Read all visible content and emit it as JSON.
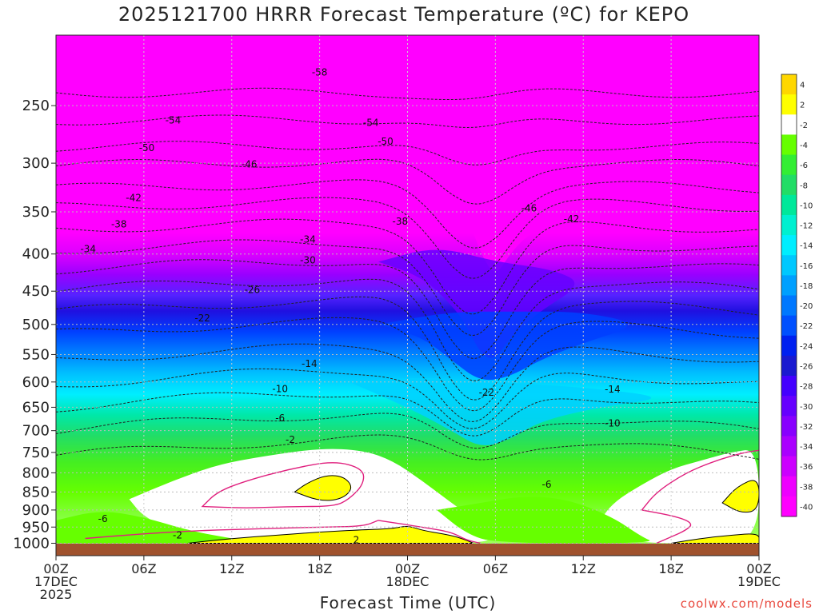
{
  "title": "2025121700 HRRR Forecast Temperature (ºC) for KEPO",
  "xlabel": "Forecast Time (UTC)",
  "credit": "coolwx.com/models",
  "colors": {
    "ground": "#a0522d",
    "grid": "#888888",
    "contour": "#222222",
    "freezing_contour": "#e0207e"
  },
  "chart_data": {
    "type": "heatmap",
    "title": "2025121700 HRRR Forecast Temperature (ºC) for KEPO",
    "xlabel": "Forecast Time (UTC)",
    "ylabel": "",
    "x_ticks": [
      {
        "line1": "00Z",
        "line2": "17DEC",
        "line3": "2025"
      },
      {
        "line1": "06Z",
        "line2": "",
        "line3": ""
      },
      {
        "line1": "12Z",
        "line2": "",
        "line3": ""
      },
      {
        "line1": "18Z",
        "line2": "",
        "line3": ""
      },
      {
        "line1": "00Z",
        "line2": "18DEC",
        "line3": ""
      },
      {
        "line1": "06Z",
        "line2": "",
        "line3": ""
      },
      {
        "line1": "12Z",
        "line2": "",
        "line3": ""
      },
      {
        "line1": "18Z",
        "line2": "",
        "line3": ""
      },
      {
        "line1": "00Z",
        "line2": "19DEC",
        "line3": ""
      }
    ],
    "x_hours": [
      0,
      6,
      12,
      18,
      24,
      30,
      36,
      42,
      48
    ],
    "y_levels_hpa": [
      250,
      300,
      350,
      400,
      450,
      500,
      550,
      600,
      650,
      700,
      750,
      800,
      850,
      900,
      950,
      1000
    ],
    "y_axis": "pressure (hPa), log scale, decreasing upward",
    "colorbar": {
      "labels": [
        "4",
        "2",
        "-2",
        "-4",
        "-6",
        "-8",
        "-10",
        "-12",
        "-14",
        "-16",
        "-18",
        "-20",
        "-22",
        "-24",
        "-26",
        "-28",
        "-30",
        "-32",
        "-34",
        "-36",
        "-38",
        "-40"
      ],
      "colors": [
        "#ffd700",
        "#ffff00",
        "#ffffff",
        "#66ff00",
        "#33ee33",
        "#22dd66",
        "#00e89a",
        "#00f0d0",
        "#00eeff",
        "#00c8ff",
        "#00a0ff",
        "#0078ff",
        "#0050ff",
        "#0020f0",
        "#1a1ad0",
        "#4400ff",
        "#6600ff",
        "#8800ff",
        "#aa00ff",
        "#cc00ff",
        "#ee00ff",
        "#ff00ff"
      ]
    },
    "contour_labels": [
      {
        "value": "-58",
        "hour": 18.0,
        "p": 225
      },
      {
        "value": "-54",
        "hour": 8.0,
        "p": 262
      },
      {
        "value": "-54",
        "hour": 21.5,
        "p": 264
      },
      {
        "value": "-50",
        "hour": 6.2,
        "p": 286
      },
      {
        "value": "-50",
        "hour": 22.5,
        "p": 280
      },
      {
        "value": "-46",
        "hour": 13.2,
        "p": 301
      },
      {
        "value": "-46",
        "hour": 32.3,
        "p": 346
      },
      {
        "value": "-42",
        "hour": 5.3,
        "p": 335
      },
      {
        "value": "-42",
        "hour": 35.2,
        "p": 358
      },
      {
        "value": "-38",
        "hour": 4.3,
        "p": 364
      },
      {
        "value": "-38",
        "hour": 23.5,
        "p": 361
      },
      {
        "value": "-34",
        "hour": 2.2,
        "p": 394
      },
      {
        "value": "-34",
        "hour": 17.2,
        "p": 382
      },
      {
        "value": "-30",
        "hour": 17.2,
        "p": 408
      },
      {
        "value": "-26",
        "hour": 13.4,
        "p": 448
      },
      {
        "value": "-22",
        "hour": 10.0,
        "p": 490
      },
      {
        "value": "-22",
        "hour": 29.4,
        "p": 620
      },
      {
        "value": "-14",
        "hour": 17.3,
        "p": 566
      },
      {
        "value": "-14",
        "hour": 38.0,
        "p": 614
      },
      {
        "value": "-10",
        "hour": 15.3,
        "p": 613
      },
      {
        "value": "-10",
        "hour": 38.0,
        "p": 684
      },
      {
        "value": "-6",
        "hour": 15.3,
        "p": 673
      },
      {
        "value": "-6",
        "hour": 33.5,
        "p": 830
      },
      {
        "value": "-6",
        "hour": 3.2,
        "p": 926
      },
      {
        "value": "-2",
        "hour": 16.0,
        "p": 720
      },
      {
        "value": "-2",
        "hour": 8.3,
        "p": 975
      },
      {
        "value": "2",
        "hour": 20.5,
        "p": 990
      }
    ]
  }
}
